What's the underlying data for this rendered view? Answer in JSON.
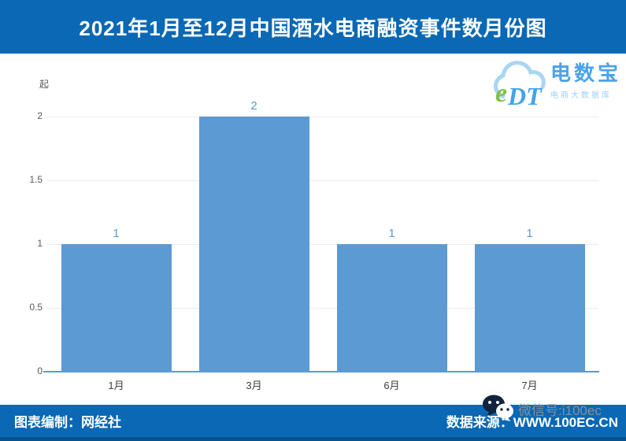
{
  "header": {
    "title": "2021年1月至12月中国酒水电商融资事件数月份图",
    "bg_color": "#0a68b4"
  },
  "logo": {
    "cloud_e": "e",
    "cloud_dt": "DT",
    "name": "电数宝",
    "subtitle": "电商大数据库"
  },
  "chart_data": {
    "type": "bar",
    "title": "2021年1月至12月中国酒水电商融资事件数月份图",
    "unit": "起",
    "categories": [
      "1月",
      "3月",
      "6月",
      "7月"
    ],
    "values": [
      1,
      2,
      1,
      1
    ],
    "xlabel": "",
    "ylabel": "起",
    "ylim": [
      0,
      2
    ],
    "yticks": [
      0,
      0.5,
      1,
      1.5,
      2
    ],
    "grid": true,
    "legend": "none",
    "bar_color": "#5b9ad2",
    "value_label_color": "#5b9ad2",
    "gridline_color": "#ececec"
  },
  "footer": {
    "left": "图表编制：网经社",
    "right": "数据来源：WWW.100EC.CN"
  },
  "wechat": {
    "label": "微信号:i100ec"
  }
}
